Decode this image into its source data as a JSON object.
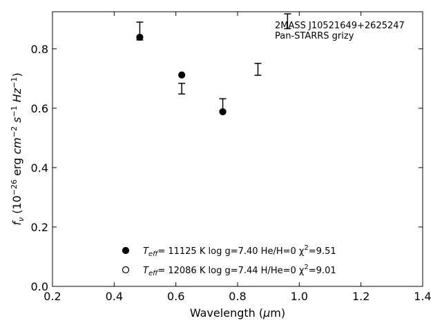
{
  "chart_data": {
    "type": "scatter",
    "xlabel": "Wavelength (μm)",
    "ylabel": "fν (10⁻²⁶ erg cm⁻² s⁻¹ Hz⁻¹)",
    "xlim": [
      0.2,
      1.4
    ],
    "ylim": [
      0.0,
      0.925
    ],
    "xticks": [
      0.2,
      0.4,
      0.6,
      0.8,
      1.0,
      1.2,
      1.4
    ],
    "xtick_labels": [
      "0.2",
      "0.4",
      "0.6",
      "0.8",
      "1.0",
      "1.2",
      "1.4"
    ],
    "yticks": [
      0.0,
      0.2,
      0.4,
      0.6,
      0.8
    ],
    "ytick_labels": [
      "0.0",
      "0.2",
      "0.4",
      "0.6",
      "0.8"
    ],
    "grid": false,
    "annotation_lines": [
      "2MASS J10521649+2625247",
      "Pan-STARRS grizy"
    ],
    "observed": {
      "x": [
        0.483,
        0.619,
        0.752,
        0.866,
        0.962
      ],
      "y": [
        0.86,
        0.666,
        0.612,
        0.731,
        0.893
      ],
      "yerr": [
        0.03,
        0.018,
        0.02,
        0.02,
        0.025
      ]
    },
    "series": [
      {
        "name": "Teff= 11125 K  log g=7.40  He/H=0  χ²=9.51",
        "marker": "filled-circle",
        "x": [
          0.483,
          0.619,
          0.752
        ],
        "y": [
          0.839,
          0.712,
          0.588
        ]
      },
      {
        "name": "Teff= 12086 K  log g=7.44  H/He=0  χ²=9.01",
        "marker": "open-circle",
        "x": [],
        "y": []
      }
    ],
    "legend_placement": "lower-center",
    "legend_labels": [
      {
        "teff": "= 11125 K  log g=7.40  He/H=0  χ",
        "chi2": "=9.51"
      },
      {
        "teff": "= 12086 K  log g=7.44  H/He=0  χ",
        "chi2": "=9.01"
      }
    ]
  }
}
